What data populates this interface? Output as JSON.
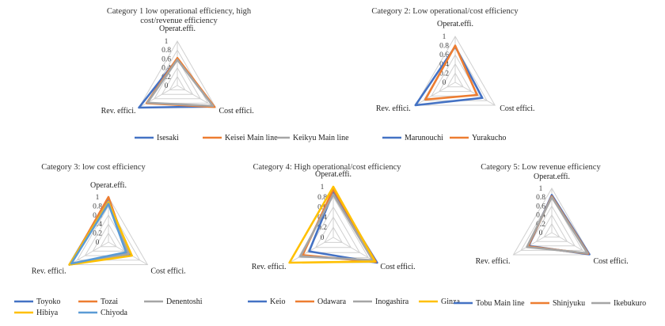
{
  "chart_data": [
    {
      "type": "radar",
      "title": "Category 1 low operational efficiency, high cost/revenue efficiency",
      "title_lines": [
        "Category 1 low operational efficiency, high",
        "cost/revenue efficiency"
      ],
      "axes": [
        "Operat.effi.",
        "Cost effici.",
        "Rev. effici."
      ],
      "ticks": [
        "0",
        "0.2",
        "0.4",
        "0.6",
        "0.8",
        "1"
      ],
      "range": [
        0,
        1
      ],
      "legend_position": "bottom",
      "series": [
        {
          "name": "Isesaki",
          "color": "#4472C4",
          "values": [
            0.6,
            0.95,
            1.0
          ]
        },
        {
          "name": "Keisei Main line",
          "color": "#ED7D31",
          "values": [
            0.62,
            0.97,
            0.8
          ]
        },
        {
          "name": "Keikyu Main line",
          "color": "#A5A5A5",
          "values": [
            0.58,
            0.93,
            0.78
          ]
        }
      ]
    },
    {
      "type": "radar",
      "title": "Category 2: Low operational/cost efficiency",
      "title_lines": [
        "Category 2: Low operational/cost efficiency"
      ],
      "axes": [
        "Operat.effi.",
        "Cost effici.",
        "Rev. effici."
      ],
      "ticks": [
        "0",
        "0.2",
        "0.4",
        "0.6",
        "0.8",
        "1"
      ],
      "range": [
        0,
        1
      ],
      "legend_position": "bottom",
      "series": [
        {
          "name": "Marunouchi",
          "color": "#4472C4",
          "values": [
            0.78,
            0.68,
            1.0
          ]
        },
        {
          "name": "Yurakucho",
          "color": "#ED7D31",
          "values": [
            0.8,
            0.55,
            0.75
          ]
        }
      ]
    },
    {
      "type": "radar",
      "title": "Category 3: low cost efficiency",
      "title_lines": [
        "Category 3: low cost efficiency"
      ],
      "axes": [
        "Operat.effi.",
        "Cost effici.",
        "Rev. effici."
      ],
      "ticks": [
        "0",
        "0.2",
        "0.4",
        "0.6",
        "0.8",
        "1"
      ],
      "range": [
        0,
        1
      ],
      "legend_position": "bottom",
      "series": [
        {
          "name": "Toyoko",
          "color": "#4472C4",
          "values": [
            0.95,
            0.55,
            1.0
          ]
        },
        {
          "name": "Tozai",
          "color": "#ED7D31",
          "values": [
            1.0,
            0.5,
            0.97
          ]
        },
        {
          "name": "Denentoshi",
          "color": "#A5A5A5",
          "values": [
            0.9,
            0.52,
            0.97
          ]
        },
        {
          "name": "Hibiya",
          "color": "#FFC000",
          "values": [
            0.88,
            0.6,
            1.0
          ]
        },
        {
          "name": "Chiyoda",
          "color": "#5B9BD5",
          "values": [
            0.85,
            0.45,
            0.95
          ]
        }
      ]
    },
    {
      "type": "radar",
      "title": "Category 4: High operational/cost efficiency",
      "title_lines": [
        "Category 4: High operational/cost efficiency"
      ],
      "axes": [
        "Operat.effi.",
        "Cost effici.",
        "Rev. effici."
      ],
      "ticks": [
        "0",
        "0.2",
        "0.4",
        "0.6",
        "0.8",
        "1"
      ],
      "range": [
        0,
        1
      ],
      "legend_position": "bottom",
      "series": [
        {
          "name": "Keio",
          "color": "#4472C4",
          "values": [
            0.9,
            1.0,
            0.55
          ]
        },
        {
          "name": "Odawara",
          "color": "#ED7D31",
          "values": [
            0.95,
            0.97,
            0.7
          ]
        },
        {
          "name": "Inogashira",
          "color": "#A5A5A5",
          "values": [
            0.85,
            0.9,
            0.75
          ]
        },
        {
          "name": "Ginza",
          "color": "#FFC000",
          "values": [
            1.0,
            0.95,
            1.0
          ]
        }
      ]
    },
    {
      "type": "radar",
      "title": "Category 5: Low revenue efficiency",
      "title_lines": [
        "Category 5:  Low revenue efficiency"
      ],
      "axes": [
        "Operat.effi.",
        "Cost effici.",
        "Rev. effici."
      ],
      "ticks": [
        "0",
        "0.2",
        "0.4",
        "0.6",
        "0.8",
        "1"
      ],
      "range": [
        0,
        1
      ],
      "legend_position": "bottom",
      "series": [
        {
          "name": "Tobu Main line",
          "color": "#4472C4",
          "values": [
            0.85,
            0.98,
            0.6
          ]
        },
        {
          "name": "Shinjyuku",
          "color": "#ED7D31",
          "values": [
            0.82,
            0.95,
            0.62
          ]
        },
        {
          "name": "Ikebukuro",
          "color": "#A5A5A5",
          "values": [
            0.8,
            0.93,
            0.65
          ]
        }
      ]
    }
  ]
}
